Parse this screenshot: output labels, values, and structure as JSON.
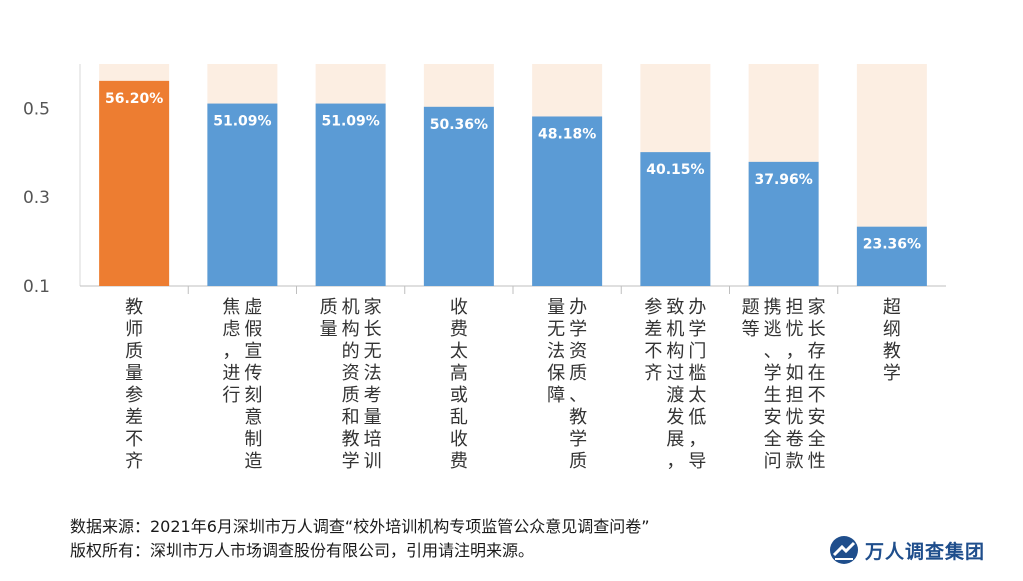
{
  "chart_data": {
    "type": "bar",
    "categories": [
      "教师质量参差不齐",
      "虚假宣传刻意制造焦虑，进行",
      "家长无法考量培训机构的资质和教学质量",
      "收费太高或乱收费",
      "办学资质、教学质量无法保障",
      "办学门槛太低，导致机构过渡发展，参差不齐",
      "家长存在不安全性担忧，如担忧卷款携逃、学生安全问题等",
      "超纲教学"
    ],
    "values": [
      0.562,
      0.5109,
      0.5109,
      0.5036,
      0.4818,
      0.4015,
      0.3796,
      0.2336
    ],
    "data_labels": [
      "56.20%",
      "51.09%",
      "51.09%",
      "50.36%",
      "48.18%",
      "40.15%",
      "37.96%",
      "23.36%"
    ],
    "ylim": [
      0.1,
      0.6
    ],
    "yticks": [
      "0.5",
      "0.3",
      "0.1"
    ],
    "ytick_values": [
      0.5,
      0.3,
      0.1
    ],
    "highlight_color": "#ED7D31",
    "bar_color": "#5B9BD5",
    "background_band_color": "#FCEEE2",
    "grid": false
  },
  "footer": {
    "source": "数据来源：2021年6月深圳市万人调查“校外培训机构专项监管公众意见调查问卷”",
    "copyright": "版权所有：深圳市万人市场调查股份有限公司，引用请注明来源。"
  },
  "brand": {
    "name": "万人调查集团"
  }
}
